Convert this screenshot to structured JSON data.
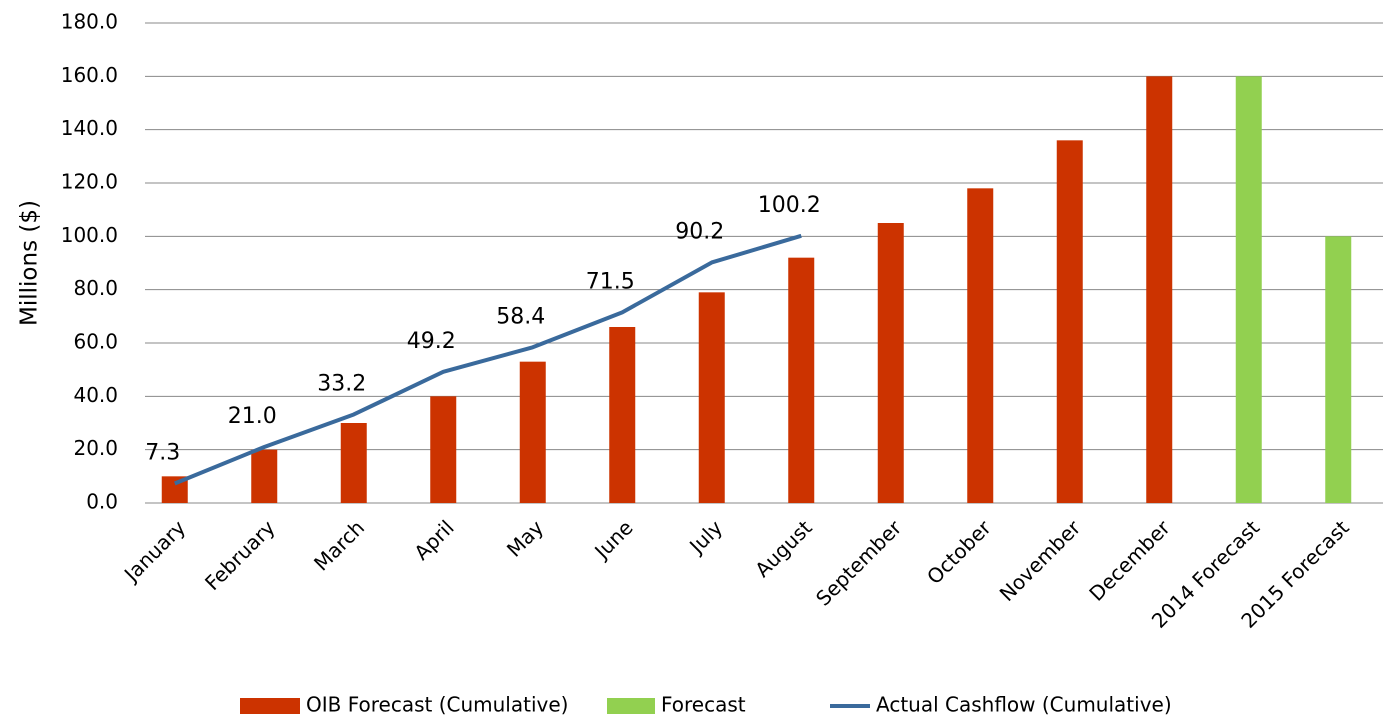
{
  "chart_data": {
    "type": "bar",
    "y_label": "Millions ($)",
    "categories": [
      "January",
      "February",
      "March",
      "April",
      "May",
      "June",
      "July",
      "August",
      "September",
      "October",
      "November",
      "December",
      "2014 Forecast",
      "2015 Forecast"
    ],
    "series": [
      {
        "name": "OIB Forecast (Cumulative)",
        "type": "bar",
        "color": "#cc3300",
        "values": [
          10,
          20,
          30,
          40,
          53,
          66,
          79,
          92,
          105,
          118,
          136,
          160,
          null,
          null
        ]
      },
      {
        "name": "Forecast",
        "type": "bar",
        "color": "#92d050",
        "values": [
          null,
          null,
          null,
          null,
          null,
          null,
          null,
          null,
          null,
          null,
          null,
          null,
          160,
          100
        ]
      },
      {
        "name": "Actual Cashflow (Cumulative)",
        "type": "line",
        "color": "#3a6a9c",
        "values": [
          7.3,
          21.0,
          33.2,
          49.2,
          58.4,
          71.5,
          90.2,
          100.2,
          null,
          null,
          null,
          null,
          null,
          null
        ],
        "value_labels": [
          "7.3",
          "21.0",
          "33.2",
          "49.2",
          "58.4",
          "71.5",
          "90.2",
          "100.2",
          null,
          null,
          null,
          null,
          null,
          null
        ]
      }
    ],
    "ylim": [
      0,
      180
    ],
    "yticks": [
      {
        "value": 0,
        "label": "0.0"
      },
      {
        "value": 20,
        "label": "20.0"
      },
      {
        "value": 40,
        "label": "40.0"
      },
      {
        "value": 60,
        "label": "60.0"
      },
      {
        "value": 80,
        "label": "80.0"
      },
      {
        "value": 100,
        "label": "100.0"
      },
      {
        "value": 120,
        "label": "120.0"
      },
      {
        "value": 140,
        "label": "140.0"
      },
      {
        "value": 160,
        "label": "160.0"
      },
      {
        "value": 180,
        "label": "180.0"
      }
    ],
    "grid": true,
    "legend": "bottom"
  }
}
